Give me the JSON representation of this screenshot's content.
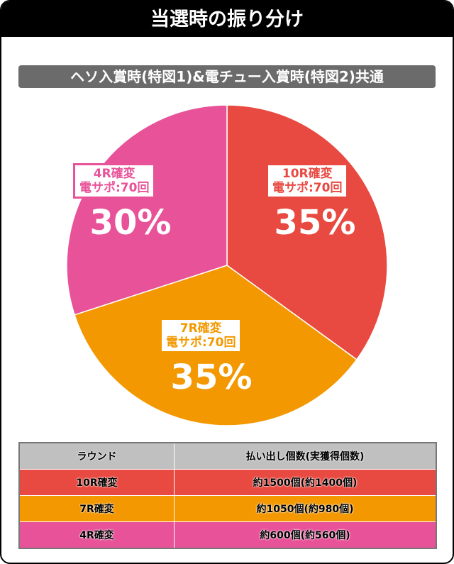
{
  "title": "当選時の振り分け",
  "subtitle": "ヘソ入賞時(特図1)&電チュー入賞時(特図2)共通",
  "chart_data": {
    "type": "pie",
    "slices": [
      {
        "name": "10R確変",
        "sub": "電サポ:70回",
        "value": 35,
        "label": "35%",
        "color": "#e84a41"
      },
      {
        "name": "7R確変",
        "sub": "電サポ:70回",
        "value": 35,
        "label": "35%",
        "color": "#f39800"
      },
      {
        "name": "4R確変",
        "sub": "電サポ:70回",
        "value": 30,
        "label": "30%",
        "color": "#e85298"
      }
    ]
  },
  "table": {
    "headers": [
      "ラウンド",
      "払い出し個数(実獲得個数)"
    ],
    "rows": [
      {
        "round": "10R確変",
        "payout": "約1500個(約1400個)",
        "color": "#e84a41"
      },
      {
        "round": "7R確変",
        "payout": "約1050個(約980個)",
        "color": "#f39800"
      },
      {
        "round": "4R確変",
        "payout": "約600個(約560個)",
        "color": "#e85298"
      }
    ]
  }
}
